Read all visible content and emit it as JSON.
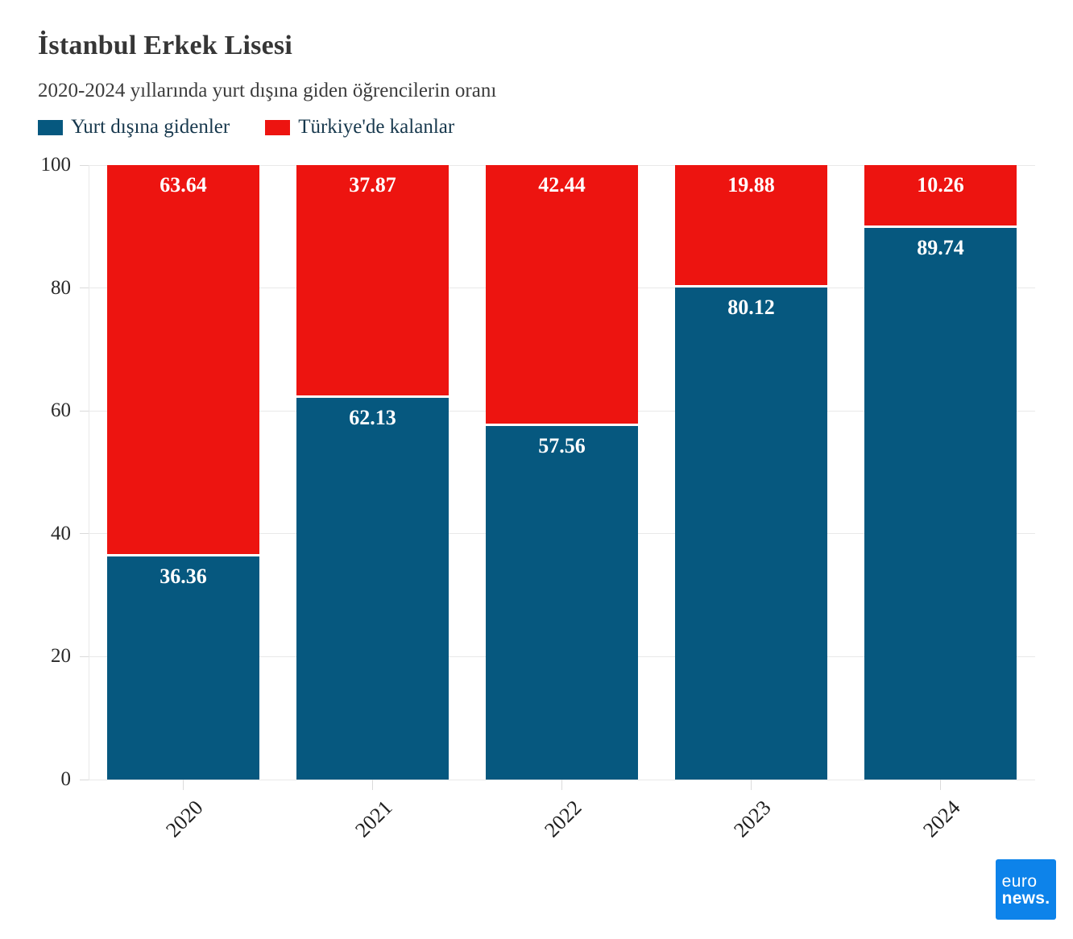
{
  "header": {
    "title": "İstanbul Erkek Lisesi",
    "subtitle": "2020-2024 yıllarında yurt dışına giden öğrencilerin oranı"
  },
  "legend": {
    "items": [
      {
        "id": "abroad",
        "label": "Yurt dışına gidenler",
        "color": "#06587f"
      },
      {
        "id": "stayed",
        "label": "Türkiye'de kalanlar",
        "color": "#ed1410"
      }
    ]
  },
  "chart_data": {
    "type": "bar",
    "stacked": true,
    "title": "İstanbul Erkek Lisesi",
    "subtitle": "2020-2024 yıllarında yurt dışına giden öğrencilerin oranı",
    "categories": [
      "2020",
      "2021",
      "2022",
      "2023",
      "2024"
    ],
    "series": [
      {
        "name": "Yurt dışına gidenler",
        "color": "#06587f",
        "values": [
          36.36,
          62.13,
          57.56,
          80.12,
          89.74
        ]
      },
      {
        "name": "Türkiye'de kalanlar",
        "color": "#ed1410",
        "values": [
          63.64,
          37.87,
          42.44,
          19.88,
          10.26
        ]
      }
    ],
    "xlabel": "",
    "ylabel": "",
    "ylim": [
      0,
      100
    ],
    "yticks": [
      0,
      20,
      40,
      60,
      80,
      100
    ],
    "grid": "horizontal",
    "legend_position": "top-left",
    "value_labels": true,
    "value_label_color": "#ffffff"
  },
  "footer": {
    "logo_line1": "euro",
    "logo_line2": "news.",
    "logo_color": "#0d83ea"
  }
}
